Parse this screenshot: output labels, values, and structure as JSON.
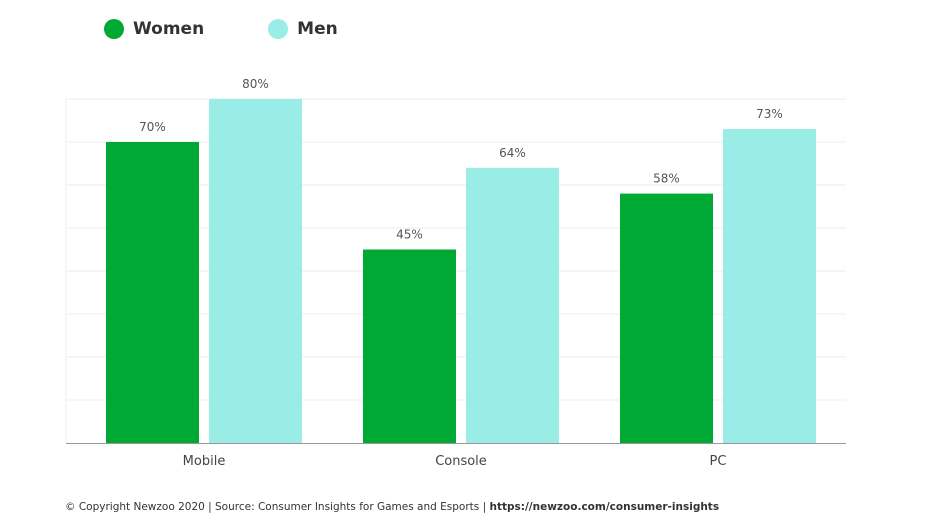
{
  "chart_data": {
    "type": "bar",
    "categories": [
      "Mobile",
      "Console",
      "PC"
    ],
    "series": [
      {
        "name": "Women",
        "color": "#00a934",
        "values": [
          70,
          45,
          58
        ],
        "labels": [
          "70%",
          "45%",
          "58%"
        ]
      },
      {
        "name": "Men",
        "color": "#99ede6",
        "values": [
          80,
          64,
          73
        ],
        "labels": [
          "80%",
          "64%",
          "73%"
        ]
      }
    ],
    "ylim": [
      0,
      80
    ],
    "grid": true,
    "legend_position": "top-left"
  },
  "footer": {
    "text": "© Copyright Newzoo 2020 | Source: Consumer Insights for Games and Esports | ",
    "link": "https://newzoo.com/consumer-insights"
  }
}
